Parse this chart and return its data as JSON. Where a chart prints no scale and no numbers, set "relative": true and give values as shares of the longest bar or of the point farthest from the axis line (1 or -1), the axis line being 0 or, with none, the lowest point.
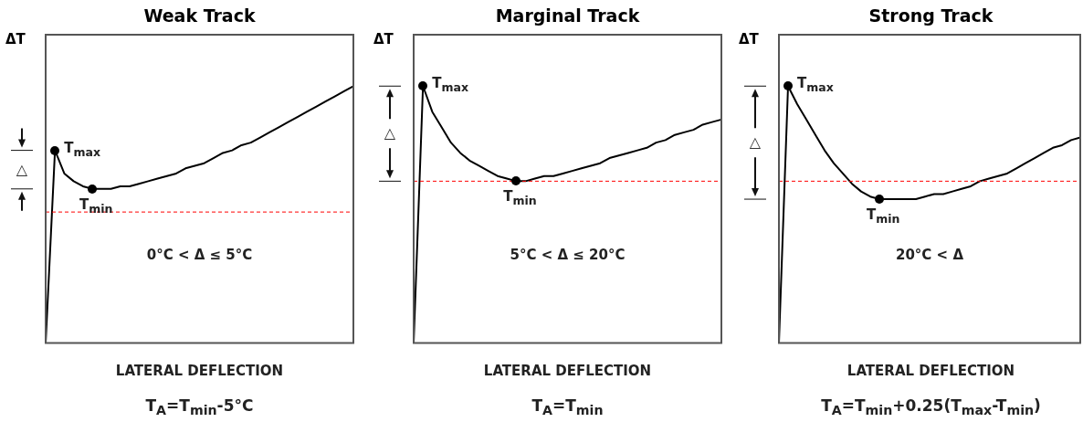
{
  "chart_data": [
    {
      "type": "line",
      "title": "Weak Track",
      "xlabel": "LATERAL DEFLECTION",
      "ylabel": "ΔT",
      "relative": true,
      "legend": false,
      "categories": [
        null,
        null,
        null,
        null,
        null,
        null,
        null,
        null,
        null,
        null,
        null,
        null,
        null,
        null,
        null,
        null,
        null,
        null,
        null,
        null,
        null,
        null,
        null,
        null,
        null,
        null,
        null,
        null,
        null,
        null,
        null,
        null,
        null,
        null
      ],
      "series": [
        {
          "color": "#000000",
          "marker": "none",
          "values": [
            0,
            0.75,
            0.66,
            0.63,
            0.61,
            0.6,
            0.6,
            0.6,
            0.61,
            0.61,
            0.62,
            0.63,
            0.64,
            0.65,
            0.66,
            0.68,
            0.69,
            0.7,
            0.72,
            0.74,
            0.75,
            0.77,
            0.78,
            0.8,
            0.82,
            0.84,
            0.86,
            0.88,
            0.9,
            0.92,
            0.94,
            0.96,
            0.98,
            1
          ]
        }
      ],
      "ref_lines": [
        {
          "axis": "y",
          "value": 0.51,
          "color": "#ff0000",
          "line_style": "dashed"
        }
      ],
      "annotations": [
        "0°C < Δ ≤ 5°C",
        "T$_{A}$=T$_{min}$-5°C",
        "△",
        "T$_{max}$",
        "T$_{min}$"
      ]
    },
    {
      "type": "line",
      "title": "Marginal Track",
      "xlabel": "LATERAL DEFLECTION",
      "ylabel": "ΔT",
      "relative": true,
      "legend": false,
      "categories": [
        null,
        null,
        null,
        null,
        null,
        null,
        null,
        null,
        null,
        null,
        null,
        null,
        null,
        null,
        null,
        null,
        null,
        null,
        null,
        null,
        null,
        null,
        null,
        null,
        null,
        null,
        null,
        null,
        null,
        null,
        null,
        null,
        null,
        null
      ],
      "series": [
        {
          "color": "#000000",
          "marker": "none",
          "values": [
            0,
            1,
            0.9,
            0.84,
            0.78,
            0.74,
            0.71,
            0.69,
            0.67,
            0.65,
            0.64,
            0.63,
            0.63,
            0.64,
            0.65,
            0.65,
            0.66,
            0.67,
            0.68,
            0.69,
            0.7,
            0.72,
            0.73,
            0.74,
            0.75,
            0.76,
            0.78,
            0.79,
            0.81,
            0.82,
            0.83,
            0.85,
            0.86,
            0.87
          ]
        }
      ],
      "ref_lines": [
        {
          "axis": "y",
          "value": 0.63,
          "color": "#ff0000",
          "line_style": "dashed"
        }
      ],
      "annotations": [
        "5°C < Δ ≤ 20°C",
        "T$_{A}$=T$_{min}$",
        "△",
        "T$_{max}$",
        "T$_{min}$"
      ]
    },
    {
      "type": "line",
      "title": "Strong Track",
      "xlabel": "LATERAL DEFLECTION",
      "ylabel": "ΔT",
      "relative": true,
      "legend": false,
      "categories": [
        null,
        null,
        null,
        null,
        null,
        null,
        null,
        null,
        null,
        null,
        null,
        null,
        null,
        null,
        null,
        null,
        null,
        null,
        null,
        null,
        null,
        null,
        null,
        null,
        null,
        null,
        null,
        null,
        null,
        null,
        null,
        null,
        null,
        null
      ],
      "series": [
        {
          "color": "#000000",
          "marker": "none",
          "values": [
            0,
            1,
            0.93,
            0.87,
            0.81,
            0.75,
            0.7,
            0.66,
            0.62,
            0.59,
            0.57,
            0.56,
            0.56,
            0.56,
            0.56,
            0.56,
            0.57,
            0.58,
            0.58,
            0.59,
            0.6,
            0.61,
            0.63,
            0.64,
            0.65,
            0.66,
            0.68,
            0.7,
            0.72,
            0.74,
            0.76,
            0.77,
            0.79,
            0.8
          ]
        }
      ],
      "ref_lines": [
        {
          "axis": "y",
          "value": 0.63,
          "color": "#ff0000",
          "line_style": "dashed"
        }
      ],
      "annotations": [
        "20°C < Δ",
        "T$_{A}$=T$_{min}$+0.25(T$_{max}$-T$_{min}$)",
        "△",
        "T$_{max}$",
        "T$_{min}$"
      ]
    }
  ]
}
